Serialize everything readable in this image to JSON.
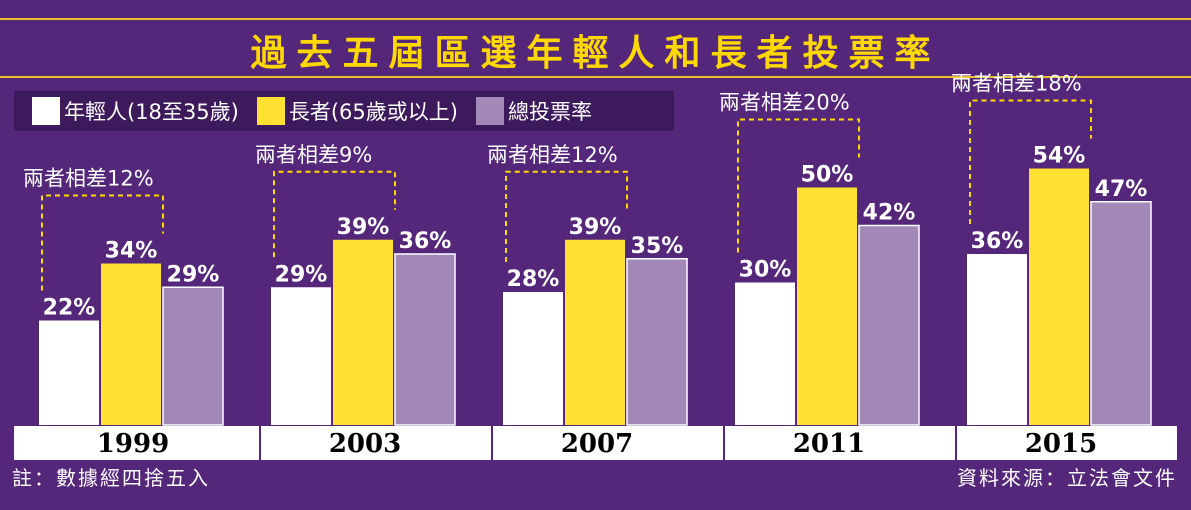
{
  "title": "過去五屆區選年輕人和長者投票率",
  "note": "註：數據經四捨五入",
  "source": "資料來源：立法會文件",
  "colors": {
    "background": "#55277a",
    "young": "#ffffff",
    "elderly": "#ffe033",
    "overall": "#a389b8",
    "accent": "#ffd800"
  },
  "chart_data": {
    "type": "bar",
    "title": "過去五屆區選年輕人和長者投票率",
    "categories": [
      "1999",
      "2003",
      "2007",
      "2011",
      "2015"
    ],
    "series": [
      {
        "name": "年輕人(18至35歲)",
        "values": [
          22,
          29,
          28,
          30,
          36
        ],
        "labels": [
          "22%",
          "29%",
          "28%",
          "30%",
          "36%"
        ]
      },
      {
        "name": "長者(65歲或以上)",
        "values": [
          34,
          39,
          39,
          50,
          54
        ],
        "labels": [
          "34%",
          "39%",
          "39%",
          "50%",
          "54%"
        ]
      },
      {
        "name": "總投票率",
        "values": [
          29,
          36,
          35,
          42,
          47
        ],
        "labels": [
          "29%",
          "36%",
          "35%",
          "42%",
          "47%"
        ]
      }
    ],
    "annotations": [
      "兩者相差12%",
      "兩者相差9%",
      "兩者相差12%",
      "兩者相差20%",
      "兩者相差18%"
    ],
    "unit": "%",
    "legend_position": "top-left",
    "grid": false,
    "ylim": [
      0,
      60
    ]
  }
}
